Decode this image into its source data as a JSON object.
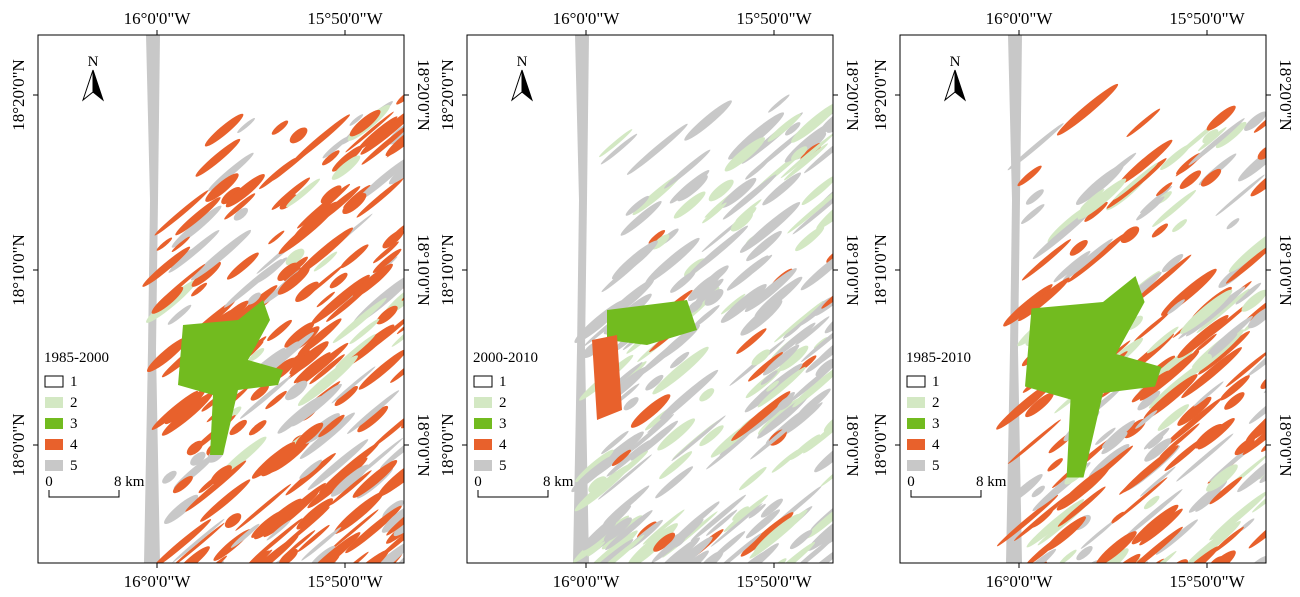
{
  "panels": [
    {
      "period": "1985-2000",
      "north": "N",
      "legend": [
        {
          "label": "1",
          "color": "#ffffff"
        },
        {
          "label": "2",
          "color": "#d3e8c3"
        },
        {
          "label": "3",
          "color": "#72bb1f"
        },
        {
          "label": "4",
          "color": "#e8612c"
        },
        {
          "label": "5",
          "color": "#c8c8c8"
        }
      ],
      "scale": {
        "start": "0",
        "end": "8 km"
      },
      "lon_labels": [
        "16°0'0\"W",
        "15°50'0\"W"
      ],
      "lat_labels": [
        "18°20'0\"N",
        "18°10'0\"N",
        "18°0'0\"N"
      ]
    },
    {
      "period": "2000-2010",
      "north": "N",
      "legend": [
        {
          "label": "1",
          "color": "#ffffff"
        },
        {
          "label": "2",
          "color": "#d3e8c3"
        },
        {
          "label": "3",
          "color": "#72bb1f"
        },
        {
          "label": "4",
          "color": "#e8612c"
        },
        {
          "label": "5",
          "color": "#c8c8c8"
        }
      ],
      "scale": {
        "start": "0",
        "end": "8 km"
      },
      "lon_labels": [
        "16°0'0\"W",
        "15°50'0\"W"
      ],
      "lat_labels": [
        "18°20'0\"N",
        "18°10'0\"N",
        "18°0'0\"N"
      ]
    },
    {
      "period": "1985-2010",
      "north": "N",
      "legend": [
        {
          "label": "1",
          "color": "#ffffff"
        },
        {
          "label": "2",
          "color": "#d3e8c3"
        },
        {
          "label": "3",
          "color": "#72bb1f"
        },
        {
          "label": "4",
          "color": "#e8612c"
        },
        {
          "label": "5",
          "color": "#c8c8c8"
        }
      ],
      "scale": {
        "start": "0",
        "end": "8 km"
      },
      "lon_labels": [
        "16°0'0\"W",
        "15°50'0\"W"
      ],
      "lat_labels": [
        "18°20'0\"N",
        "18°10'0\"N",
        "18°0'0\"N"
      ]
    }
  ]
}
